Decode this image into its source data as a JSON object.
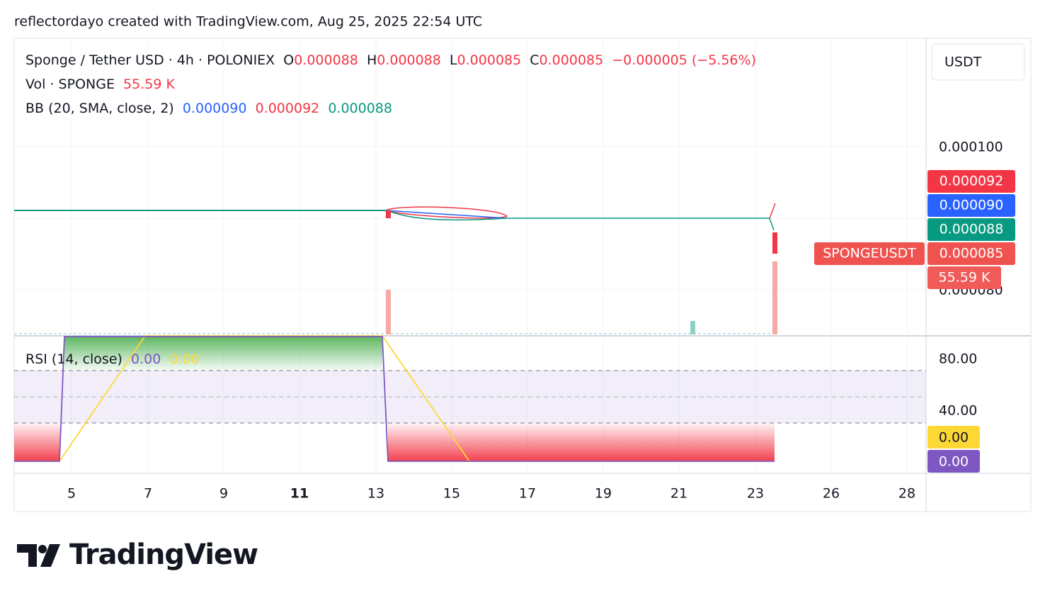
{
  "header": {
    "attribution": "reflectordayo created with TradingView.com, Aug 25, 2025 22:54 UTC"
  },
  "legend": {
    "symbol": "Sponge / Tether USD · 4h · POLONIEX",
    "open_label": "O",
    "open": "0.000088",
    "high_label": "H",
    "high": "0.000088",
    "low_label": "L",
    "low": "0.000085",
    "close_label": "C",
    "close": "0.000085",
    "change": "−0.000005 (−5.56%)",
    "volume_label": "Vol · SPONGE",
    "volume": "55.59 K",
    "bb_label": "BB (20, SMA, close, 2)",
    "bb_basis": "0.000090",
    "bb_upper": "0.000092",
    "bb_lower": "0.000088"
  },
  "price_axis": {
    "currency": "USDT",
    "ticks": [
      "0.000100",
      "0.000080"
    ],
    "badges": {
      "bb_upper": "0.000092",
      "bb_basis": "0.000090",
      "bb_lower": "0.000088",
      "symbol": "SPONGEUSDT",
      "last_price": "0.000085",
      "volume": "55.59 K"
    }
  },
  "rsi": {
    "label": "RSI (14, close)",
    "value": "0.00",
    "ma_value": "0.00",
    "ticks": [
      "80.00",
      "40.00"
    ],
    "badges": {
      "ma_value": "0.00",
      "value": "0.00"
    }
  },
  "time_axis": {
    "ticks": [
      "5",
      "7",
      "9",
      "11",
      "13",
      "15",
      "17",
      "19",
      "21",
      "23",
      "26",
      "28"
    ]
  },
  "footer": {
    "logo": "TradingView"
  }
}
